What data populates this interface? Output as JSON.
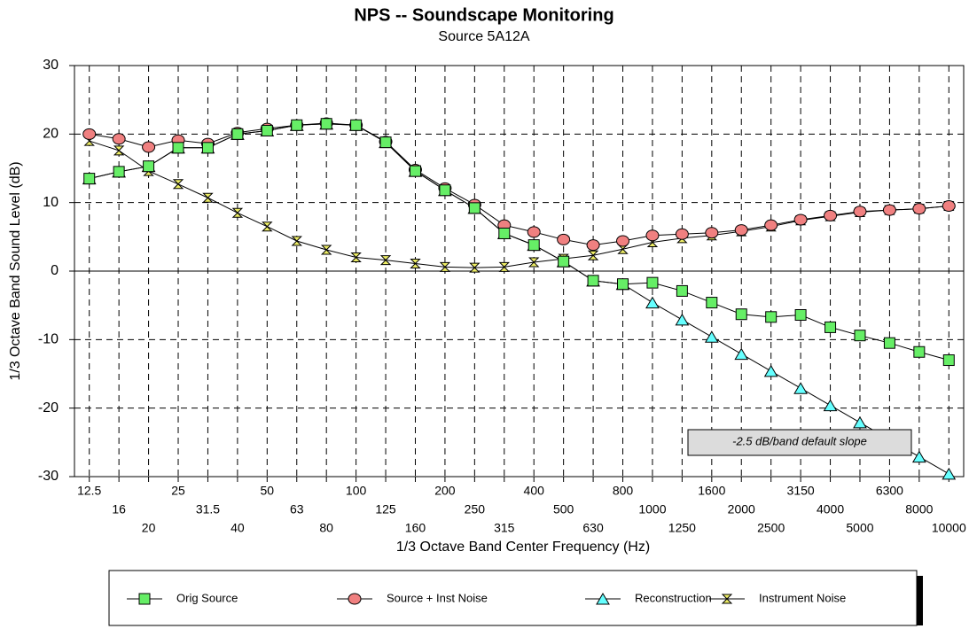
{
  "chart_data": {
    "type": "line",
    "title": "NPS  --  Soundscape Monitoring",
    "subtitle": "Source 5A12A",
    "x_label": "1/3 Octave Band Center Frequency (Hz)",
    "y_label": "1/3 Octave Band Sound Level (dB)",
    "annotation": "-2.5 dB/band default slope",
    "categories": [
      "12.5",
      "16",
      "20",
      "25",
      "31.5",
      "40",
      "50",
      "63",
      "80",
      "100",
      "125",
      "160",
      "200",
      "250",
      "315",
      "400",
      "500",
      "630",
      "800",
      "1000",
      "1250",
      "1600",
      "2000",
      "2500",
      "3150",
      "4000",
      "5000",
      "6300",
      "8000",
      "10000"
    ],
    "series": [
      {
        "name": "Orig Source",
        "color": "#66ee66",
        "marker": "square",
        "values": [
          13.5,
          14.5,
          15.3,
          18,
          18,
          20,
          20.5,
          21.3,
          21.5,
          21.3,
          18.8,
          14.6,
          11.8,
          9.2,
          5.5,
          3.8,
          1.4,
          -1.4,
          -1.9,
          -1.7,
          -2.9,
          -4.6,
          -6.3,
          -6.7,
          -6.4,
          -8.2,
          -9.4,
          -10.5,
          -11.8,
          -13
        ]
      },
      {
        "name": "Source + Inst Noise",
        "color": "#f08080",
        "marker": "circle",
        "values": [
          20,
          19.3,
          18.1,
          19.1,
          18.6,
          20.2,
          20.8,
          21.3,
          21.6,
          21.3,
          18.9,
          14.8,
          12.1,
          9.7,
          6.7,
          5.7,
          4.6,
          3.8,
          4.4,
          5.2,
          5.4,
          5.6,
          6,
          6.7,
          7.5,
          8.1,
          8.7,
          8.9,
          9.1,
          9.5
        ]
      },
      {
        "name": "Reconstruction",
        "color": "#66ffff",
        "marker": "triangle",
        "values": [
          13.5,
          14.5,
          15.3,
          18,
          18,
          20,
          20.5,
          21.3,
          21.5,
          21.3,
          18.8,
          14.6,
          11.8,
          9.2,
          5.5,
          3.8,
          1.4,
          -1.4,
          -1.9,
          -4.6,
          -7.1,
          -9.6,
          -12.1,
          -14.6,
          -17.1,
          -19.6,
          -22.1,
          -24.6,
          -27.1,
          -29.6
        ]
      },
      {
        "name": "Instrument Noise",
        "color": "#eeee66",
        "marker": "bowtie",
        "values": [
          19,
          17.6,
          14.6,
          12.7,
          10.7,
          8.5,
          6.5,
          4.4,
          3.1,
          2,
          1.6,
          1.1,
          0.6,
          0.5,
          0.6,
          1.3,
          1.8,
          2.3,
          3.2,
          4.2,
          4.8,
          5.2,
          5.8,
          6.5,
          7.4,
          8,
          8.6,
          8.9,
          9.1,
          9.5
        ]
      }
    ],
    "ylim": [
      -30,
      30
    ],
    "yticks": [
      -30,
      -20,
      -10,
      0,
      10,
      20,
      30
    ],
    "grid": true,
    "legend": "bottom"
  }
}
